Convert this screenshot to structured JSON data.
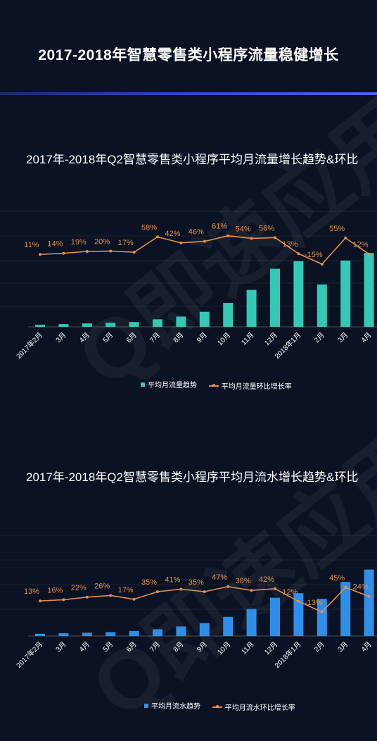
{
  "title": "2017-2018年智慧零售类小程序流量稳健增长",
  "watermark": "Q即速应用",
  "colors": {
    "background": "#0b1223",
    "flow_bar": "#33c9b5",
    "revenue_bar": "#2f8fe8",
    "rate_line": "#e0914c"
  },
  "chart_data": [
    {
      "type": "bar",
      "title": "2017年-2018年Q2智慧零售类小程序平均月流量增长趋势&环比",
      "categories": [
        "2017年2月",
        "3月",
        "4月",
        "5月",
        "6月",
        "7月",
        "8月",
        "9月",
        "10月",
        "11月",
        "12月",
        "2018年1月",
        "2月",
        "3月",
        "4月"
      ],
      "series": [
        {
          "name": "平均月流量趋势",
          "type": "bar",
          "values": [
            3,
            4,
            5,
            6,
            7,
            11,
            15,
            22,
            35,
            54,
            85,
            96,
            62,
            97,
            108
          ]
        },
        {
          "name": "平均月流量环比增长率",
          "type": "line",
          "values": [
            11,
            14,
            19,
            20,
            17,
            58,
            42,
            46,
            61,
            54,
            56,
            13,
            -15,
            55,
            12
          ],
          "labels": [
            "11%",
            "14%",
            "19%",
            "20%",
            "17%",
            "58%",
            "42%",
            "46%",
            "61%",
            "54%",
            "56%",
            "13%",
            "-15%",
            "55%",
            "12%"
          ]
        }
      ]
    },
    {
      "type": "bar",
      "title": "2017年-2018年Q2智慧零售类小程序平均月流水增长趋势&环比",
      "categories": [
        "2017年2月",
        "3月",
        "4月",
        "5月",
        "6月",
        "7月",
        "8月",
        "9月",
        "10月",
        "11月",
        "12月",
        "2018年1月",
        "2月",
        "3月",
        "4月"
      ],
      "series": [
        {
          "name": "平均月流水趋势",
          "type": "bar",
          "values": [
            4,
            5,
            6,
            7,
            9,
            12,
            17,
            23,
            34,
            48,
            68,
            76,
            66,
            96,
            118
          ]
        },
        {
          "name": "平均月流水环比增长率",
          "type": "line",
          "values": [
            13,
            16,
            22,
            26,
            17,
            35,
            41,
            35,
            47,
            38,
            42,
            12,
            -13,
            45,
            24
          ],
          "labels": [
            "13%",
            "16%",
            "22%",
            "26%",
            "17%",
            "35%",
            "41%",
            "35%",
            "47%",
            "38%",
            "42%",
            "12%",
            "-13%",
            "45%",
            "24%"
          ]
        }
      ]
    }
  ]
}
